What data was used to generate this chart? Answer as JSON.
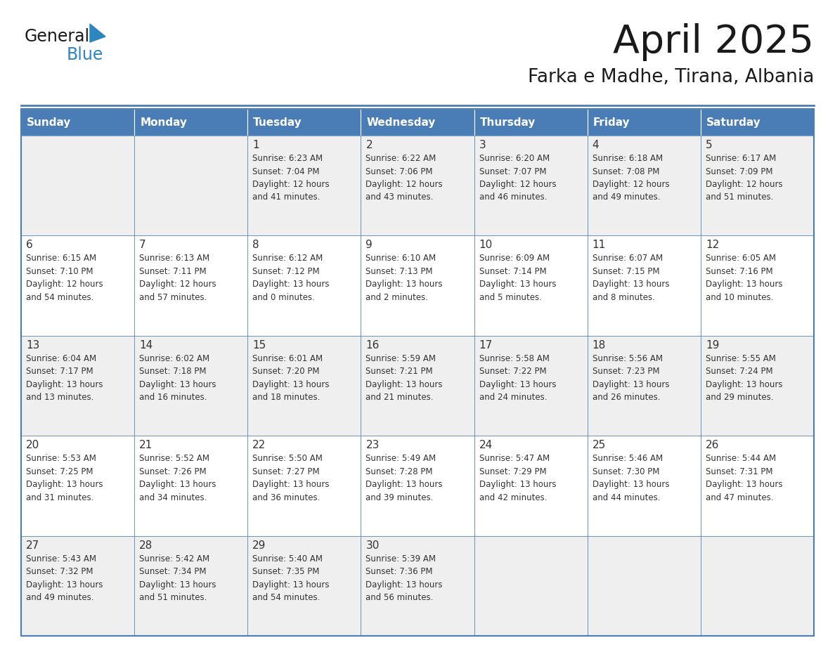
{
  "title": "April 2025",
  "subtitle": "Farka e Madhe, Tirana, Albania",
  "days_of_week": [
    "Sunday",
    "Monday",
    "Tuesday",
    "Wednesday",
    "Thursday",
    "Friday",
    "Saturday"
  ],
  "header_bg_color": "#4A7DB5",
  "header_text_color": "#FFFFFF",
  "cell_bg_color_light": "#EFEFEF",
  "cell_bg_color_white": "#FFFFFF",
  "border_color": "#4A7DB5",
  "text_color": "#333333",
  "title_color": "#1a1a1a",
  "logo_general_color": "#1a1a1a",
  "logo_blue_color": "#2E86C1",
  "weeks": [
    [
      {
        "day": "",
        "sunrise": "",
        "sunset": "",
        "daylight": ""
      },
      {
        "day": "",
        "sunrise": "",
        "sunset": "",
        "daylight": ""
      },
      {
        "day": "1",
        "sunrise": "Sunrise: 6:23 AM",
        "sunset": "Sunset: 7:04 PM",
        "daylight": "Daylight: 12 hours and 41 minutes."
      },
      {
        "day": "2",
        "sunrise": "Sunrise: 6:22 AM",
        "sunset": "Sunset: 7:06 PM",
        "daylight": "Daylight: 12 hours and 43 minutes."
      },
      {
        "day": "3",
        "sunrise": "Sunrise: 6:20 AM",
        "sunset": "Sunset: 7:07 PM",
        "daylight": "Daylight: 12 hours and 46 minutes."
      },
      {
        "day": "4",
        "sunrise": "Sunrise: 6:18 AM",
        "sunset": "Sunset: 7:08 PM",
        "daylight": "Daylight: 12 hours and 49 minutes."
      },
      {
        "day": "5",
        "sunrise": "Sunrise: 6:17 AM",
        "sunset": "Sunset: 7:09 PM",
        "daylight": "Daylight: 12 hours and 51 minutes."
      }
    ],
    [
      {
        "day": "6",
        "sunrise": "Sunrise: 6:15 AM",
        "sunset": "Sunset: 7:10 PM",
        "daylight": "Daylight: 12 hours and 54 minutes."
      },
      {
        "day": "7",
        "sunrise": "Sunrise: 6:13 AM",
        "sunset": "Sunset: 7:11 PM",
        "daylight": "Daylight: 12 hours and 57 minutes."
      },
      {
        "day": "8",
        "sunrise": "Sunrise: 6:12 AM",
        "sunset": "Sunset: 7:12 PM",
        "daylight": "Daylight: 13 hours and 0 minutes."
      },
      {
        "day": "9",
        "sunrise": "Sunrise: 6:10 AM",
        "sunset": "Sunset: 7:13 PM",
        "daylight": "Daylight: 13 hours and 2 minutes."
      },
      {
        "day": "10",
        "sunrise": "Sunrise: 6:09 AM",
        "sunset": "Sunset: 7:14 PM",
        "daylight": "Daylight: 13 hours and 5 minutes."
      },
      {
        "day": "11",
        "sunrise": "Sunrise: 6:07 AM",
        "sunset": "Sunset: 7:15 PM",
        "daylight": "Daylight: 13 hours and 8 minutes."
      },
      {
        "day": "12",
        "sunrise": "Sunrise: 6:05 AM",
        "sunset": "Sunset: 7:16 PM",
        "daylight": "Daylight: 13 hours and 10 minutes."
      }
    ],
    [
      {
        "day": "13",
        "sunrise": "Sunrise: 6:04 AM",
        "sunset": "Sunset: 7:17 PM",
        "daylight": "Daylight: 13 hours and 13 minutes."
      },
      {
        "day": "14",
        "sunrise": "Sunrise: 6:02 AM",
        "sunset": "Sunset: 7:18 PM",
        "daylight": "Daylight: 13 hours and 16 minutes."
      },
      {
        "day": "15",
        "sunrise": "Sunrise: 6:01 AM",
        "sunset": "Sunset: 7:20 PM",
        "daylight": "Daylight: 13 hours and 18 minutes."
      },
      {
        "day": "16",
        "sunrise": "Sunrise: 5:59 AM",
        "sunset": "Sunset: 7:21 PM",
        "daylight": "Daylight: 13 hours and 21 minutes."
      },
      {
        "day": "17",
        "sunrise": "Sunrise: 5:58 AM",
        "sunset": "Sunset: 7:22 PM",
        "daylight": "Daylight: 13 hours and 24 minutes."
      },
      {
        "day": "18",
        "sunrise": "Sunrise: 5:56 AM",
        "sunset": "Sunset: 7:23 PM",
        "daylight": "Daylight: 13 hours and 26 minutes."
      },
      {
        "day": "19",
        "sunrise": "Sunrise: 5:55 AM",
        "sunset": "Sunset: 7:24 PM",
        "daylight": "Daylight: 13 hours and 29 minutes."
      }
    ],
    [
      {
        "day": "20",
        "sunrise": "Sunrise: 5:53 AM",
        "sunset": "Sunset: 7:25 PM",
        "daylight": "Daylight: 13 hours and 31 minutes."
      },
      {
        "day": "21",
        "sunrise": "Sunrise: 5:52 AM",
        "sunset": "Sunset: 7:26 PM",
        "daylight": "Daylight: 13 hours and 34 minutes."
      },
      {
        "day": "22",
        "sunrise": "Sunrise: 5:50 AM",
        "sunset": "Sunset: 7:27 PM",
        "daylight": "Daylight: 13 hours and 36 minutes."
      },
      {
        "day": "23",
        "sunrise": "Sunrise: 5:49 AM",
        "sunset": "Sunset: 7:28 PM",
        "daylight": "Daylight: 13 hours and 39 minutes."
      },
      {
        "day": "24",
        "sunrise": "Sunrise: 5:47 AM",
        "sunset": "Sunset: 7:29 PM",
        "daylight": "Daylight: 13 hours and 42 minutes."
      },
      {
        "day": "25",
        "sunrise": "Sunrise: 5:46 AM",
        "sunset": "Sunset: 7:30 PM",
        "daylight": "Daylight: 13 hours and 44 minutes."
      },
      {
        "day": "26",
        "sunrise": "Sunrise: 5:44 AM",
        "sunset": "Sunset: 7:31 PM",
        "daylight": "Daylight: 13 hours and 47 minutes."
      }
    ],
    [
      {
        "day": "27",
        "sunrise": "Sunrise: 5:43 AM",
        "sunset": "Sunset: 7:32 PM",
        "daylight": "Daylight: 13 hours and 49 minutes."
      },
      {
        "day": "28",
        "sunrise": "Sunrise: 5:42 AM",
        "sunset": "Sunset: 7:34 PM",
        "daylight": "Daylight: 13 hours and 51 minutes."
      },
      {
        "day": "29",
        "sunrise": "Sunrise: 5:40 AM",
        "sunset": "Sunset: 7:35 PM",
        "daylight": "Daylight: 13 hours and 54 minutes."
      },
      {
        "day": "30",
        "sunrise": "Sunrise: 5:39 AM",
        "sunset": "Sunset: 7:36 PM",
        "daylight": "Daylight: 13 hours and 56 minutes."
      },
      {
        "day": "",
        "sunrise": "",
        "sunset": "",
        "daylight": ""
      },
      {
        "day": "",
        "sunrise": "",
        "sunset": "",
        "daylight": ""
      },
      {
        "day": "",
        "sunrise": "",
        "sunset": "",
        "daylight": ""
      }
    ]
  ]
}
